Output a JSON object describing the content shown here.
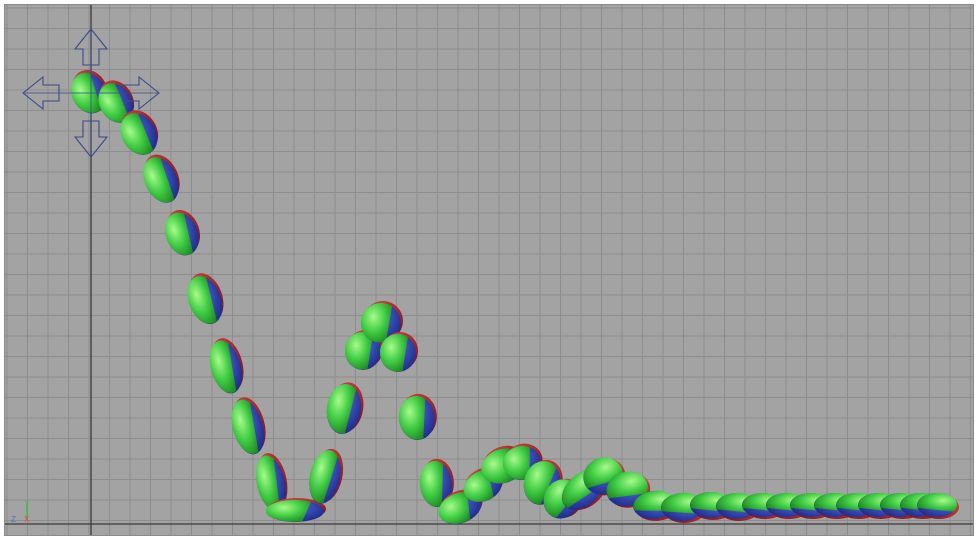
{
  "viewport": {
    "type": "3d-viewport",
    "view": "side",
    "background_color": "#a3a3a3",
    "grid": {
      "visible": true,
      "line_color": "#8d8d8d",
      "axis_color": "#3a3a3a"
    }
  },
  "axis_indicator": {
    "labels": {
      "up": "Y",
      "left": "Z",
      "right": "X"
    },
    "colors": {
      "y": "#3fbf3f",
      "z": "#4b6fd6",
      "x": "#e04040"
    }
  },
  "manipulator": {
    "icon": "move-manipulator-icon",
    "color": "#3a4a8a"
  },
  "ball": {
    "colors": {
      "red": "#d42a2a",
      "green": "#3dd23d",
      "blue": "#2c3fb8",
      "highlight": "#9bff7a"
    },
    "ghost_frame_count": 44
  }
}
